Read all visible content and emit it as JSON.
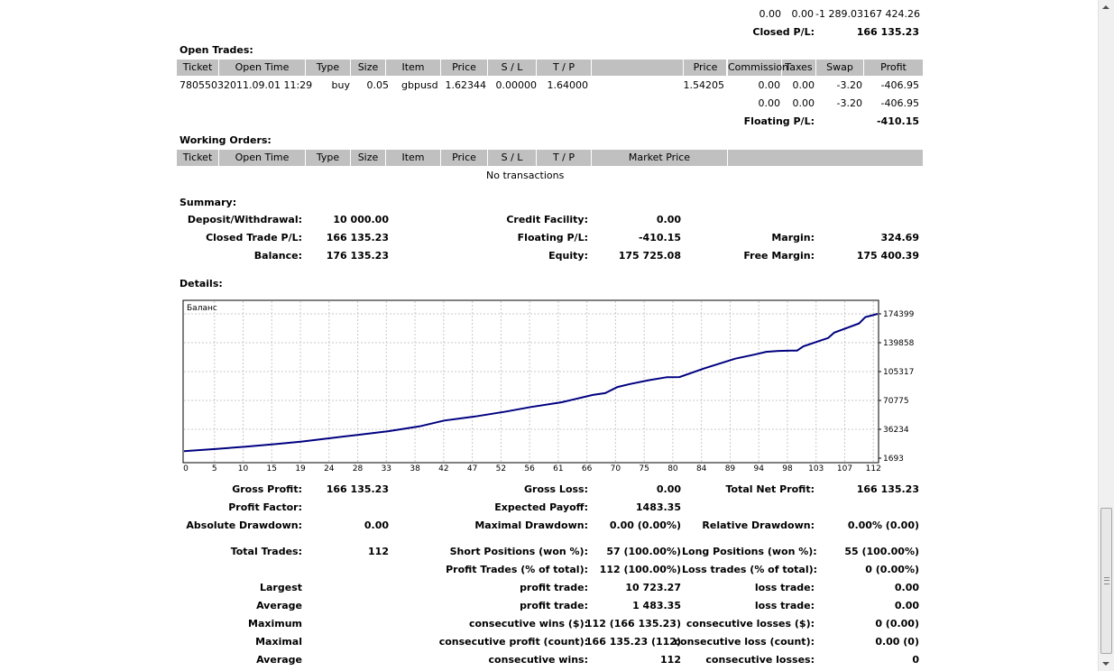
{
  "top_rows": {
    "row1": [
      "0.00",
      "0.00",
      "-1 289.03",
      "167 424.26"
    ],
    "closed_label": "Closed P/L:",
    "closed_value": "166 135.23"
  },
  "open_trades": {
    "title": "Open Trades:",
    "headers": [
      "Ticket",
      "Open Time",
      "Type",
      "Size",
      "Item",
      "Price",
      "S / L",
      "T / P",
      "",
      "Price",
      "Commission",
      "Taxes",
      "Swap",
      "Profit"
    ],
    "row": [
      "7805503",
      "2011.09.01 11:29",
      "buy",
      "0.05",
      "gbpusd",
      "1.62344",
      "0.00000",
      "1.64000",
      "",
      "1.54205",
      "0.00",
      "0.00",
      "-3.20",
      "-406.95"
    ],
    "subtotal": [
      "0.00",
      "0.00",
      "-3.20",
      "-406.95"
    ],
    "floating_label": "Floating P/L:",
    "floating_value": "-410.15"
  },
  "working_orders": {
    "title": "Working Orders:",
    "headers": [
      "Ticket",
      "Open Time",
      "Type",
      "Size",
      "Item",
      "Price",
      "S / L",
      "T / P",
      "Market Price",
      ""
    ],
    "empty_text": "No transactions"
  },
  "summary": {
    "title": "Summary:",
    "deposit_label": "Deposit/Withdrawal:",
    "deposit_value": "10 000.00",
    "credit_label": "Credit Facility:",
    "credit_value": "0.00",
    "closed_label": "Closed Trade P/L:",
    "closed_value": "166 135.23",
    "floating_label": "Floating P/L:",
    "floating_value": "-410.15",
    "margin_label": "Margin:",
    "margin_value": "324.69",
    "balance_label": "Balance:",
    "balance_value": "176 135.23",
    "equity_label": "Equity:",
    "equity_value": "175 725.08",
    "free_margin_label": "Free Margin:",
    "free_margin_value": "175 400.39"
  },
  "details": {
    "title": "Details:"
  },
  "chart_data": {
    "type": "line",
    "title": "Баланс",
    "xlabel": "",
    "ylabel": "",
    "x_ticks": [
      "0",
      "5",
      "10",
      "15",
      "19",
      "24",
      "28",
      "33",
      "38",
      "42",
      "47",
      "52",
      "56",
      "61",
      "66",
      "70",
      "75",
      "80",
      "84",
      "89",
      "94",
      "98",
      "103",
      "107",
      "112"
    ],
    "y_ticks": [
      "174399",
      "139858",
      "105317",
      "70775",
      "36234",
      "1693"
    ],
    "xlim": [
      0,
      112
    ],
    "ylim": [
      1693,
      174399
    ],
    "grid": true,
    "series": [
      {
        "color": "#000080",
        "x": [
          0,
          5,
          10,
          15,
          19,
          24,
          28,
          33,
          38,
          42,
          47,
          52,
          56,
          61,
          66,
          68,
          70,
          72,
          75,
          78,
          80,
          84,
          89,
          92,
          94,
          96,
          98,
          99,
          100,
          103,
          104,
          105,
          107,
          109,
          110,
          112
        ],
        "y": [
          10000,
          12600,
          15500,
          18600,
          21600,
          26000,
          29500,
          34000,
          39700,
          46700,
          51600,
          57500,
          62900,
          68600,
          77400,
          79500,
          86900,
          90400,
          95000,
          98600,
          98700,
          109200,
          120800,
          125500,
          129000,
          130000,
          130400,
          130500,
          135500,
          143000,
          145500,
          152000,
          157500,
          163000,
          170500,
          174399
        ]
      }
    ]
  },
  "stats": {
    "gross_profit_label": "Gross Profit:",
    "gross_profit_value": "166 135.23",
    "gross_loss_label": "Gross Loss:",
    "gross_loss_value": "0.00",
    "total_net_label": "Total Net Profit:",
    "total_net_value": "166 135.23",
    "profit_factor_label": "Profit Factor:",
    "expected_payoff_label": "Expected Payoff:",
    "expected_payoff_value": "1483.35",
    "abs_dd_label": "Absolute Drawdown:",
    "abs_dd_value": "0.00",
    "max_dd_label": "Maximal Drawdown:",
    "max_dd_value": "0.00 (0.00%)",
    "rel_dd_label": "Relative Drawdown:",
    "rel_dd_value": "0.00% (0.00)",
    "total_trades_label": "Total Trades:",
    "total_trades_value": "112",
    "short_label": "Short Positions (won %):",
    "short_value": "57 (100.00%)",
    "long_label": "Long Positions (won %):",
    "long_value": "55 (100.00%)",
    "profit_trades_label": "Profit Trades (% of total):",
    "profit_trades_value": "112 (100.00%)",
    "loss_trades_label": "Loss trades (% of total):",
    "loss_trades_value": "0 (0.00%)",
    "largest_label": "Largest",
    "largest_profit_label": "profit trade:",
    "largest_profit_value": "10 723.27",
    "largest_loss_label": "loss trade:",
    "largest_loss_value": "0.00",
    "average_label": "Average",
    "average_profit_label": "profit trade:",
    "average_profit_value": "1 483.35",
    "average_loss_label": "loss trade:",
    "average_loss_value": "0.00",
    "maximum_label": "Maximum",
    "max_cons_wins_label": "consecutive wins ($):",
    "max_cons_wins_value": "112 (166 135.23)",
    "max_cons_losses_label": "consecutive losses ($):",
    "max_cons_losses_value": "0 (0.00)",
    "maximal_label": "Maximal",
    "maximal_profit_label": "consecutive profit (count):",
    "maximal_profit_value": "166 135.23 (112)",
    "maximal_loss_label": "consecutive loss (count):",
    "maximal_loss_value": "0.00 (0)",
    "average2_label": "Average",
    "avg_cons_wins_label": "consecutive wins:",
    "avg_cons_wins_value": "112",
    "avg_cons_losses_label": "consecutive losses:",
    "avg_cons_losses_value": "0"
  }
}
